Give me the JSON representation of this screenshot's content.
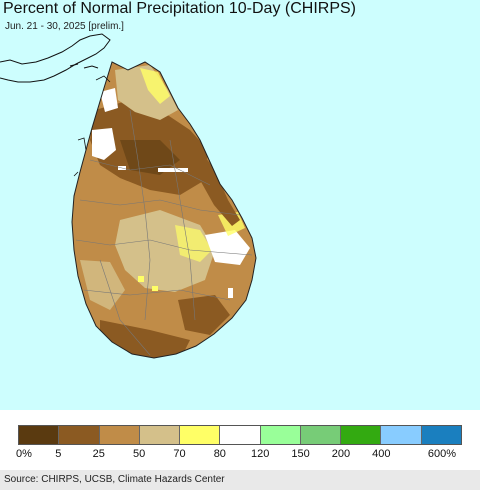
{
  "header": {
    "title": "Percent of Normal Precipitation 10-Day (CHIRPS)",
    "subtitle": "Jun. 21 - 30, 2025 [prelim.]"
  },
  "map": {
    "background_color": "#cdfefe",
    "land_base_color": "#c08c48",
    "region": "Sri Lanka"
  },
  "legend": {
    "swatches": [
      {
        "color": "#5a3a10"
      },
      {
        "color": "#8b5a22"
      },
      {
        "color": "#c08c48"
      },
      {
        "color": "#d4c08a"
      },
      {
        "color": "#ffff66"
      },
      {
        "color": "#ffffff"
      },
      {
        "color": "#99ff99"
      },
      {
        "color": "#77cc77"
      },
      {
        "color": "#33aa11"
      },
      {
        "color": "#88ccff"
      },
      {
        "color": "#1a7fbf"
      }
    ],
    "labels": [
      "0%",
      "5",
      "25",
      "50",
      "70",
      "80",
      "120",
      "150",
      "200",
      "400",
      "600%"
    ]
  },
  "footer": {
    "source": "Source: CHIRPS, UCSB, Climate Hazards Center"
  }
}
